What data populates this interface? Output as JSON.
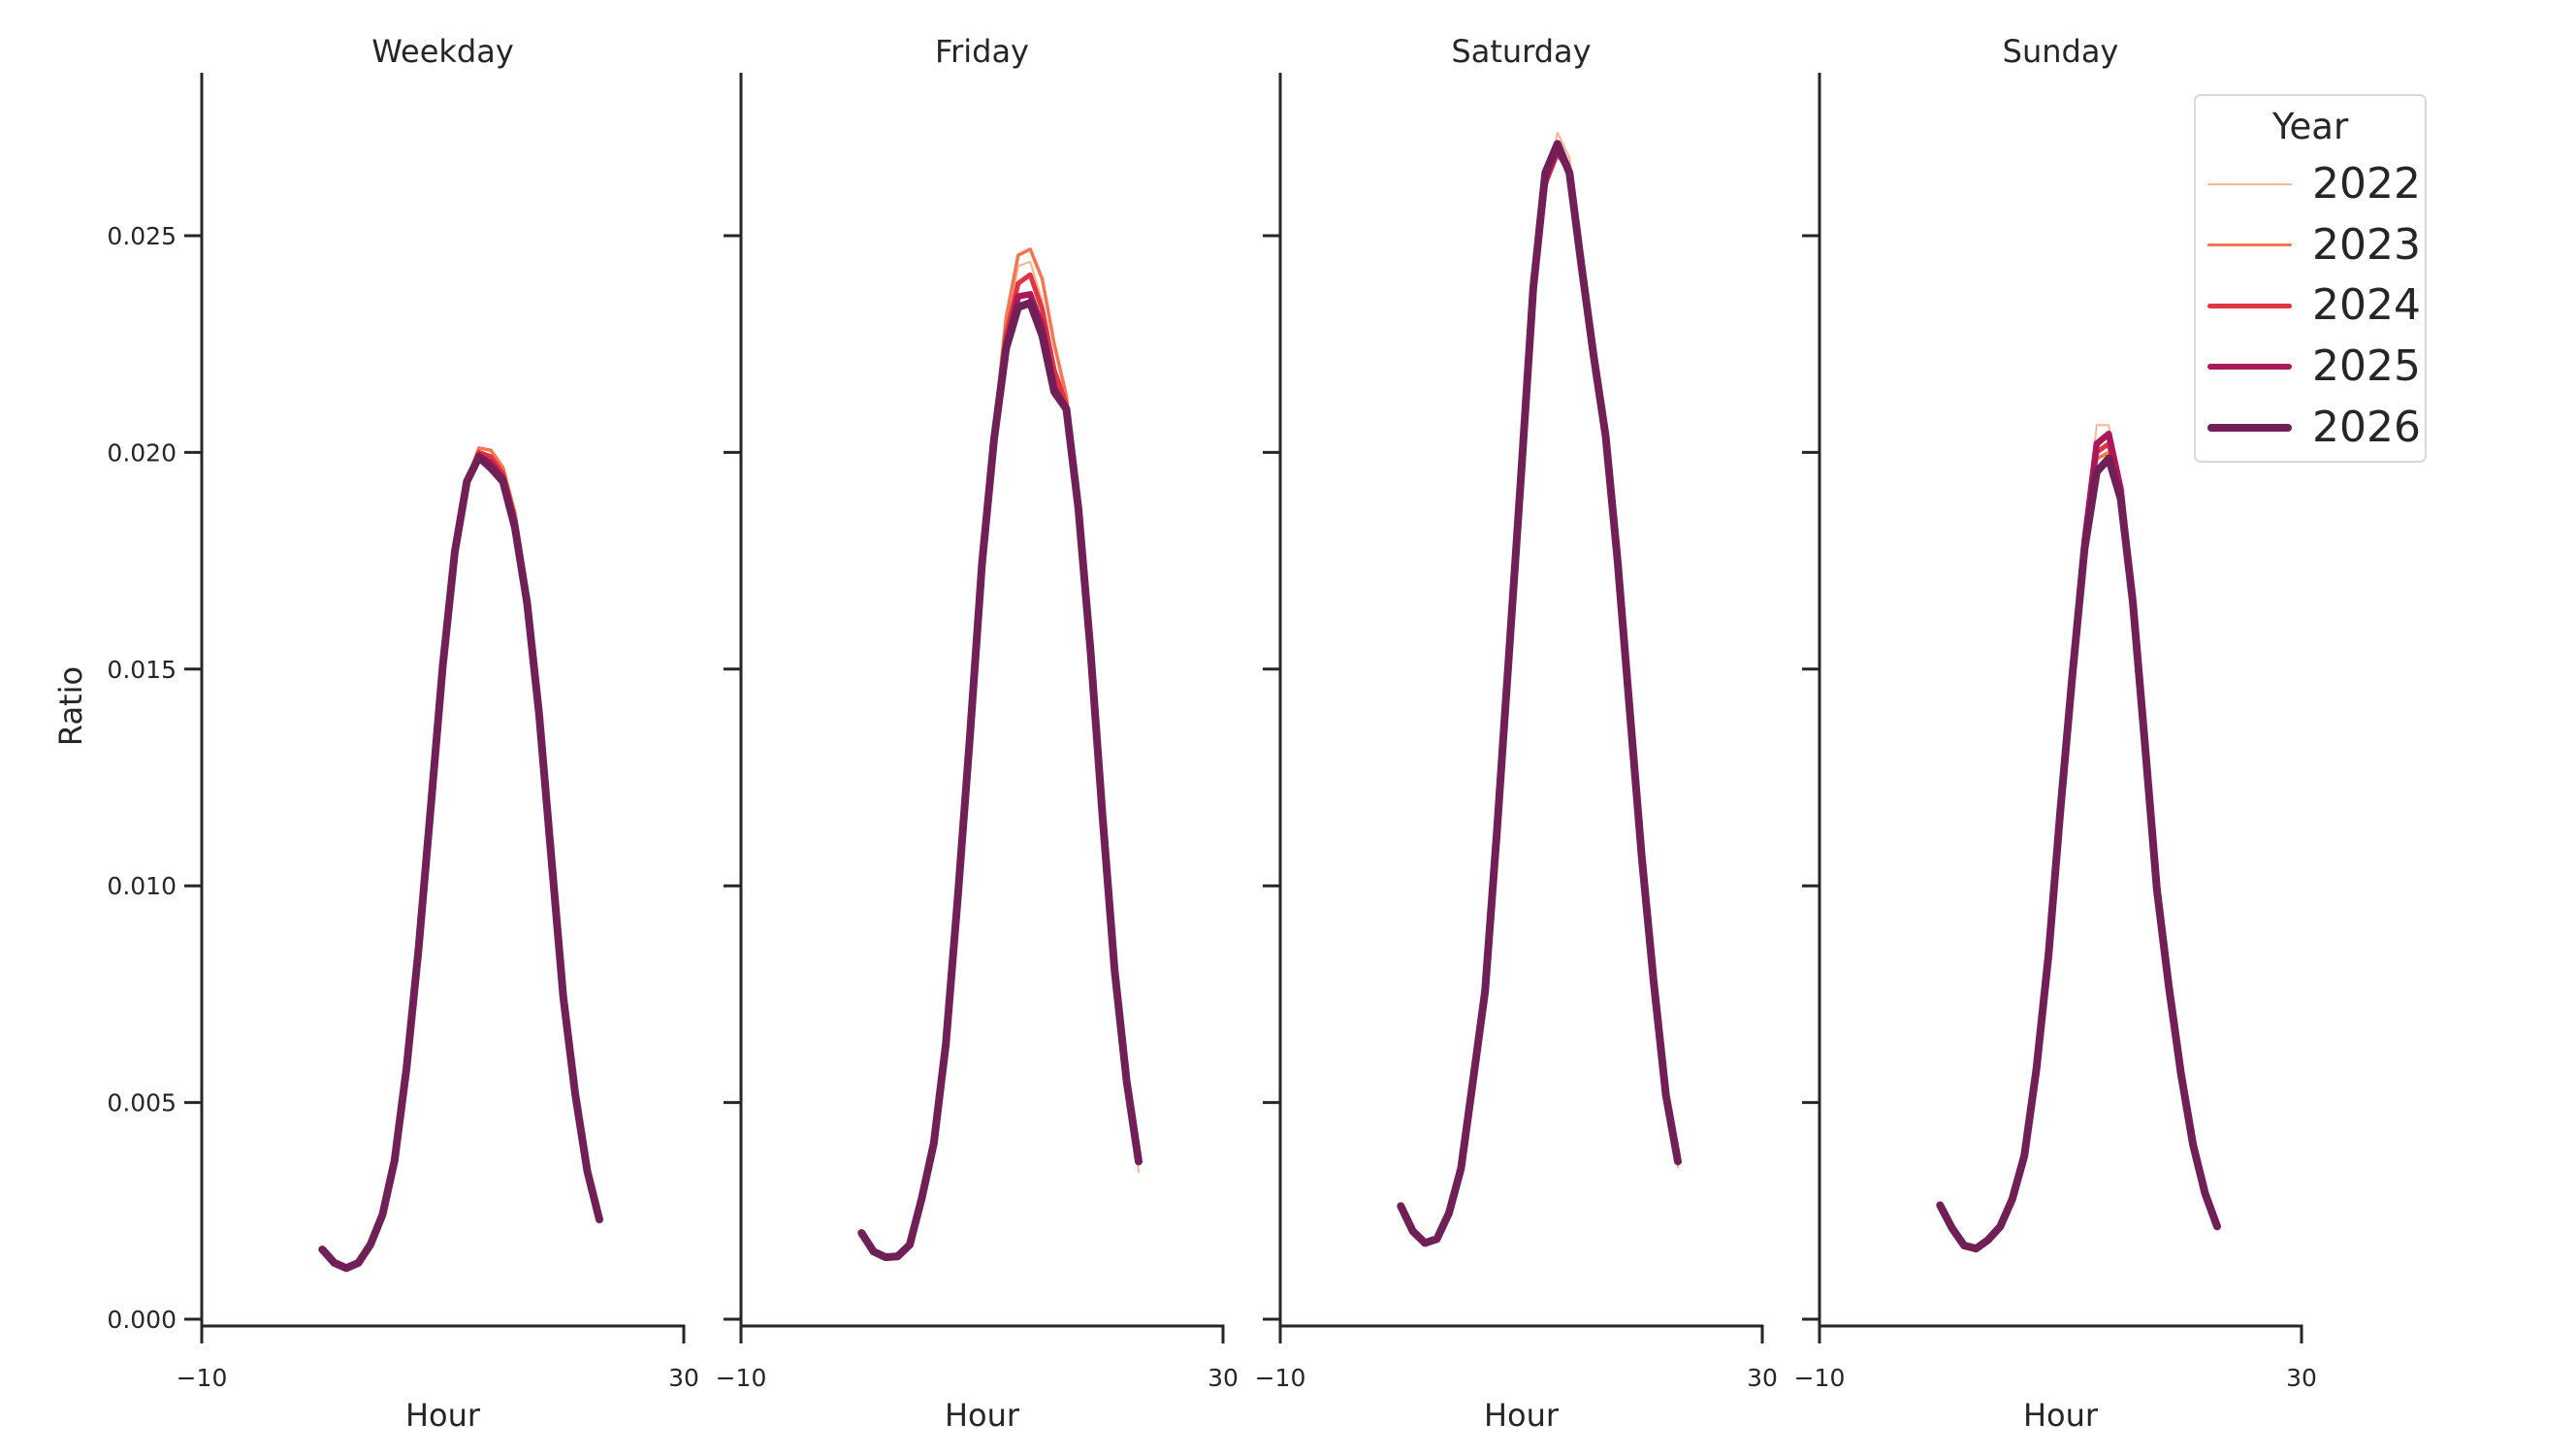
{
  "chart_data": {
    "type": "line",
    "layout": "facet-grid 1x4, shared y-axis",
    "xlabel": "Hour",
    "ylabel": "Ratio",
    "xlim": [
      -10,
      30
    ],
    "xticks": [
      -10,
      30
    ],
    "ylim": [
      0.0,
      0.0288
    ],
    "yticks": [
      0.0,
      0.005,
      0.01,
      0.015,
      0.02,
      0.025
    ],
    "ytick_labels": [
      "0.000",
      "0.005",
      "0.010",
      "0.015",
      "0.020",
      "0.025"
    ],
    "grid": false,
    "legend": {
      "title": "Year",
      "position": "upper right",
      "entries": [
        {
          "label": "2022",
          "color": "#f6b48f",
          "width": 2
        },
        {
          "label": "2023",
          "color": "#f37651",
          "width": 3.5
        },
        {
          "label": "2024",
          "color": "#e13342",
          "width": 5
        },
        {
          "label": "2025",
          "color": "#ad1759",
          "width": 6.5
        },
        {
          "label": "2026",
          "color": "#701f57",
          "width": 8
        }
      ]
    },
    "x": [
      0,
      1,
      2,
      3,
      4,
      5,
      6,
      7,
      8,
      9,
      10,
      11,
      12,
      13,
      14,
      15,
      16,
      17,
      18,
      19,
      20,
      21,
      22,
      23
    ],
    "panels": [
      {
        "title": "Weekday",
        "series": [
          {
            "name": "2022",
            "values": [
              0.00161,
              0.0013,
              0.00118,
              0.0013,
              0.00172,
              0.00241,
              0.00366,
              0.0058,
              0.00855,
              0.0118,
              0.01507,
              0.0177,
              0.01935,
              0.0199,
              0.01985,
              0.01955,
              0.0185,
              0.0166,
              0.01395,
              0.01069,
              0.00743,
              0.00518,
              0.00341,
              0.00225
            ]
          },
          {
            "name": "2023",
            "values": [
              0.00161,
              0.0013,
              0.00118,
              0.0013,
              0.00172,
              0.00241,
              0.00366,
              0.0058,
              0.00855,
              0.0118,
              0.01507,
              0.0177,
              0.01935,
              0.0201,
              0.02005,
              0.01965,
              0.0186,
              0.01665,
              0.01395,
              0.01069,
              0.00743,
              0.00518,
              0.00341,
              0.0023
            ]
          },
          {
            "name": "2024",
            "values": [
              0.00161,
              0.0013,
              0.00118,
              0.0013,
              0.00172,
              0.00241,
              0.00366,
              0.0058,
              0.00855,
              0.0118,
              0.01507,
              0.0177,
              0.01935,
              0.02,
              0.0199,
              0.0195,
              0.01845,
              0.01658,
              0.01395,
              0.01069,
              0.00743,
              0.00518,
              0.00341,
              0.0023
            ]
          },
          {
            "name": "2025",
            "values": [
              0.00161,
              0.0013,
              0.00118,
              0.0013,
              0.00172,
              0.00241,
              0.00366,
              0.0058,
              0.00855,
              0.0118,
              0.01507,
              0.0177,
              0.01933,
              0.01993,
              0.01975,
              0.0194,
              0.01835,
              0.01654,
              0.01395,
              0.01069,
              0.00743,
              0.00518,
              0.00341,
              0.0023
            ]
          },
          {
            "name": "2026",
            "values": [
              0.00161,
              0.0013,
              0.00118,
              0.0013,
              0.00172,
              0.00241,
              0.00366,
              0.0058,
              0.00855,
              0.0118,
              0.01507,
              0.0177,
              0.01933,
              0.01989,
              0.01964,
              0.01933,
              0.01826,
              0.01652,
              0.01395,
              0.01069,
              0.00743,
              0.00518,
              0.00341,
              0.0023
            ]
          }
        ]
      },
      {
        "title": "Friday",
        "series": [
          {
            "name": "2022",
            "values": [
              0.00199,
              0.00156,
              0.00143,
              0.00145,
              0.00172,
              0.00279,
              0.00406,
              0.00634,
              0.00975,
              0.01346,
              0.01743,
              0.0204,
              0.0228,
              0.0243,
              0.0244,
              0.0235,
              0.022,
              0.0211,
              0.0187,
              0.01545,
              0.0116,
              0.00806,
              0.0055,
              0.0034
            ]
          },
          {
            "name": "2023",
            "values": [
              0.00199,
              0.00156,
              0.00143,
              0.00145,
              0.00172,
              0.00279,
              0.00406,
              0.00634,
              0.00975,
              0.01346,
              0.01743,
              0.0205,
              0.0231,
              0.02455,
              0.02469,
              0.024,
              0.0225,
              0.0213,
              0.0187,
              0.01545,
              0.0116,
              0.00806,
              0.0055,
              0.00364
            ]
          },
          {
            "name": "2024",
            "values": [
              0.00199,
              0.00156,
              0.00143,
              0.00145,
              0.00172,
              0.00279,
              0.00406,
              0.00634,
              0.00975,
              0.01346,
              0.01743,
              0.02035,
              0.0227,
              0.0239,
              0.0241,
              0.0233,
              0.0219,
              0.0211,
              0.0187,
              0.01545,
              0.0116,
              0.00806,
              0.0055,
              0.00364
            ]
          },
          {
            "name": "2025",
            "values": [
              0.00199,
              0.00156,
              0.00143,
              0.00145,
              0.00172,
              0.00279,
              0.00406,
              0.00634,
              0.00975,
              0.01346,
              0.01743,
              0.0203,
              0.02245,
              0.0236,
              0.02365,
              0.0229,
              0.0215,
              0.021,
              0.0187,
              0.01545,
              0.0116,
              0.00806,
              0.0055,
              0.00364
            ]
          },
          {
            "name": "2026",
            "values": [
              0.00199,
              0.00156,
              0.00143,
              0.00145,
              0.00172,
              0.00279,
              0.00406,
              0.00634,
              0.00975,
              0.01346,
              0.01743,
              0.0203,
              0.0224,
              0.02335,
              0.02345,
              0.0227,
              0.0214,
              0.021,
              0.0187,
              0.01545,
              0.0116,
              0.00806,
              0.0055,
              0.00364
            ]
          }
        ]
      },
      {
        "title": "Saturday",
        "series": [
          {
            "name": "2022",
            "values": [
              0.00261,
              0.00203,
              0.00176,
              0.00185,
              0.00245,
              0.00348,
              0.00551,
              0.00757,
              0.01134,
              0.01542,
              0.01953,
              0.0237,
              0.026,
              0.02738,
              0.0268,
              0.0245,
              0.0224,
              0.02045,
              0.0175,
              0.01406,
              0.01065,
              0.00775,
              0.00518,
              0.0035
            ]
          },
          {
            "name": "2023",
            "values": [
              0.00261,
              0.00203,
              0.00176,
              0.00185,
              0.00245,
              0.00348,
              0.00551,
              0.00757,
              0.01134,
              0.01542,
              0.01953,
              0.02365,
              0.0261,
              0.027,
              0.0266,
              0.0244,
              0.0223,
              0.0204,
              0.01748,
              0.01406,
              0.01065,
              0.00775,
              0.00518,
              0.00364
            ]
          },
          {
            "name": "2024",
            "values": [
              0.00261,
              0.00203,
              0.00176,
              0.00185,
              0.00245,
              0.00348,
              0.00551,
              0.00757,
              0.01134,
              0.01542,
              0.01953,
              0.02375,
              0.0262,
              0.0269,
              0.0265,
              0.02435,
              0.02228,
              0.02038,
              0.01748,
              0.01406,
              0.01065,
              0.00775,
              0.00518,
              0.00364
            ]
          },
          {
            "name": "2025",
            "values": [
              0.00261,
              0.00203,
              0.00176,
              0.00185,
              0.00245,
              0.00348,
              0.00551,
              0.00757,
              0.01134,
              0.01542,
              0.01953,
              0.02378,
              0.0263,
              0.027,
              0.02645,
              0.0243,
              0.02225,
              0.02038,
              0.01748,
              0.01406,
              0.01065,
              0.00775,
              0.00518,
              0.00364
            ]
          },
          {
            "name": "2026",
            "values": [
              0.00261,
              0.00203,
              0.00176,
              0.00185,
              0.00245,
              0.00348,
              0.00551,
              0.00757,
              0.01134,
              0.01542,
              0.01953,
              0.0238,
              0.02645,
              0.02712,
              0.02645,
              0.0243,
              0.02225,
              0.02038,
              0.01748,
              0.01406,
              0.01065,
              0.00775,
              0.00518,
              0.00364
            ]
          }
        ]
      },
      {
        "title": "Sunday",
        "series": [
          {
            "name": "2022",
            "values": [
              0.00263,
              0.0021,
              0.0017,
              0.00163,
              0.00183,
              0.00214,
              0.00277,
              0.00377,
              0.00578,
              0.00839,
              0.01178,
              0.0149,
              0.018,
              0.02063,
              0.02063,
              0.019,
              0.01654,
              0.01328,
              0.00991,
              0.00766,
              0.00565,
              0.00402,
              0.0029,
              0.0021
            ]
          },
          {
            "name": "2023",
            "values": [
              0.00263,
              0.0021,
              0.0017,
              0.00163,
              0.00183,
              0.00214,
              0.00277,
              0.00377,
              0.00578,
              0.00839,
              0.01178,
              0.0149,
              0.0179,
              0.01985,
              0.02,
              0.019,
              0.01654,
              0.01328,
              0.00991,
              0.00766,
              0.00565,
              0.00402,
              0.0029,
              0.00214
            ]
          },
          {
            "name": "2024",
            "values": [
              0.00263,
              0.0021,
              0.0017,
              0.00163,
              0.00183,
              0.00214,
              0.00277,
              0.00377,
              0.00578,
              0.00839,
              0.01178,
              0.0149,
              0.0179,
              0.02,
              0.0202,
              0.0191,
              0.01654,
              0.01328,
              0.00991,
              0.00766,
              0.00565,
              0.00402,
              0.0029,
              0.00214
            ]
          },
          {
            "name": "2025",
            "values": [
              0.00263,
              0.0021,
              0.0017,
              0.00163,
              0.00183,
              0.00214,
              0.00277,
              0.00377,
              0.00578,
              0.00839,
              0.01178,
              0.0149,
              0.01795,
              0.0202,
              0.02043,
              0.01915,
              0.01654,
              0.01328,
              0.00991,
              0.00766,
              0.00565,
              0.00402,
              0.0029,
              0.00214
            ]
          },
          {
            "name": "2026",
            "values": [
              0.00263,
              0.0021,
              0.0017,
              0.00163,
              0.00183,
              0.00214,
              0.00277,
              0.00377,
              0.00578,
              0.00839,
              0.01178,
              0.0149,
              0.01778,
              0.01955,
              0.01986,
              0.01893,
              0.01654,
              0.01328,
              0.00991,
              0.00766,
              0.00565,
              0.00402,
              0.0029,
              0.00214
            ]
          }
        ]
      }
    ]
  },
  "labels": {
    "panel_titles": [
      "Weekday",
      "Friday",
      "Saturday",
      "Sunday"
    ],
    "xlabel": "Hour",
    "ylabel": "Ratio",
    "xtick_min": "−10",
    "xtick_max": "30",
    "legend_title": "Year",
    "legend_items": [
      "2022",
      "2023",
      "2024",
      "2025",
      "2026"
    ]
  }
}
